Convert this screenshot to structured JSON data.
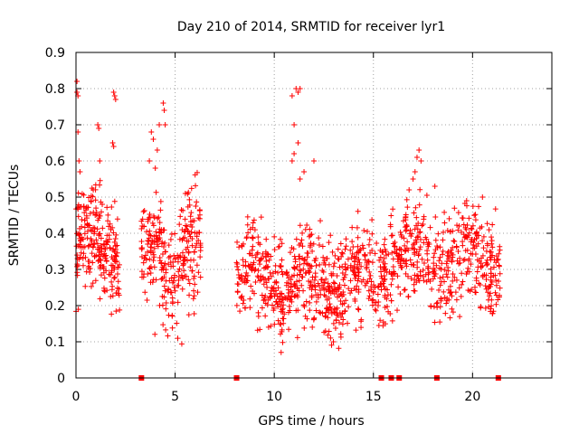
{
  "chart_data": {
    "type": "scatter",
    "title": "Day 210 of 2014, SRMTID for receiver lyr1",
    "xlabel": "GPS time / hours",
    "ylabel": "SRMTID / TECUs",
    "xlim": [
      0,
      24
    ],
    "ylim": [
      0,
      0.9
    ],
    "xticks": [
      0,
      5,
      10,
      15,
      20
    ],
    "yticks": [
      0,
      0.1,
      0.2,
      0.3,
      0.4,
      0.5,
      0.6,
      0.7,
      0.8,
      0.9
    ],
    "ytick_labels": [
      "0",
      "0.1",
      "0.2",
      "0.3",
      "0.4",
      "0.5",
      "0.6",
      "0.7",
      "0.8",
      "0.9"
    ],
    "grid": true,
    "marker": "+",
    "color": "#ff0000",
    "series": [
      {
        "name": "SRMTID",
        "clusters": [
          {
            "x_range": [
              0.0,
              2.2
            ],
            "y_range": [
              0.17,
              0.55
            ],
            "count": 240
          },
          {
            "x_range": [
              3.3,
              6.3
            ],
            "y_range": [
              0.13,
              0.55
            ],
            "count": 280
          },
          {
            "x_range": [
              8.1,
              15.4
            ],
            "y_range": [
              0.09,
              0.45
            ],
            "count": 620
          },
          {
            "x_range": [
              15.4,
              21.4
            ],
            "y_range": [
              0.15,
              0.5
            ],
            "count": 480
          }
        ],
        "peaks": [
          {
            "x": 0.05,
            "y": 0.82
          },
          {
            "x": 0.05,
            "y": 0.79
          },
          {
            "x": 0.1,
            "y": 0.78
          },
          {
            "x": 0.1,
            "y": 0.68
          },
          {
            "x": 0.15,
            "y": 0.6
          },
          {
            "x": 0.2,
            "y": 0.57
          },
          {
            "x": 1.1,
            "y": 0.7
          },
          {
            "x": 1.15,
            "y": 0.69
          },
          {
            "x": 1.2,
            "y": 0.6
          },
          {
            "x": 1.9,
            "y": 0.79
          },
          {
            "x": 1.95,
            "y": 0.78
          },
          {
            "x": 2.0,
            "y": 0.77
          },
          {
            "x": 1.85,
            "y": 0.65
          },
          {
            "x": 1.9,
            "y": 0.64
          },
          {
            "x": 3.8,
            "y": 0.68
          },
          {
            "x": 3.9,
            "y": 0.66
          },
          {
            "x": 4.1,
            "y": 0.63
          },
          {
            "x": 4.2,
            "y": 0.7
          },
          {
            "x": 4.4,
            "y": 0.76
          },
          {
            "x": 4.45,
            "y": 0.74
          },
          {
            "x": 4.5,
            "y": 0.7
          },
          {
            "x": 3.7,
            "y": 0.6
          },
          {
            "x": 4.0,
            "y": 0.58
          },
          {
            "x": 11.1,
            "y": 0.8
          },
          {
            "x": 11.2,
            "y": 0.79
          },
          {
            "x": 11.3,
            "y": 0.8
          },
          {
            "x": 10.9,
            "y": 0.78
          },
          {
            "x": 11.0,
            "y": 0.7
          },
          {
            "x": 11.2,
            "y": 0.65
          },
          {
            "x": 11.0,
            "y": 0.62
          },
          {
            "x": 10.9,
            "y": 0.6
          },
          {
            "x": 11.5,
            "y": 0.57
          },
          {
            "x": 12.0,
            "y": 0.6
          },
          {
            "x": 11.3,
            "y": 0.55
          },
          {
            "x": 17.3,
            "y": 0.63
          },
          {
            "x": 17.2,
            "y": 0.61
          },
          {
            "x": 17.4,
            "y": 0.6
          },
          {
            "x": 17.1,
            "y": 0.57
          },
          {
            "x": 17.0,
            "y": 0.55
          },
          {
            "x": 18.1,
            "y": 0.53
          },
          {
            "x": 20.5,
            "y": 0.5
          },
          {
            "x": 19.7,
            "y": 0.49
          },
          {
            "x": 16.8,
            "y": 0.52
          }
        ]
      }
    ],
    "baseline_markers": {
      "y": 0,
      "x": [
        3.3,
        8.1,
        15.4,
        15.9,
        16.3,
        18.2,
        21.3
      ]
    }
  }
}
